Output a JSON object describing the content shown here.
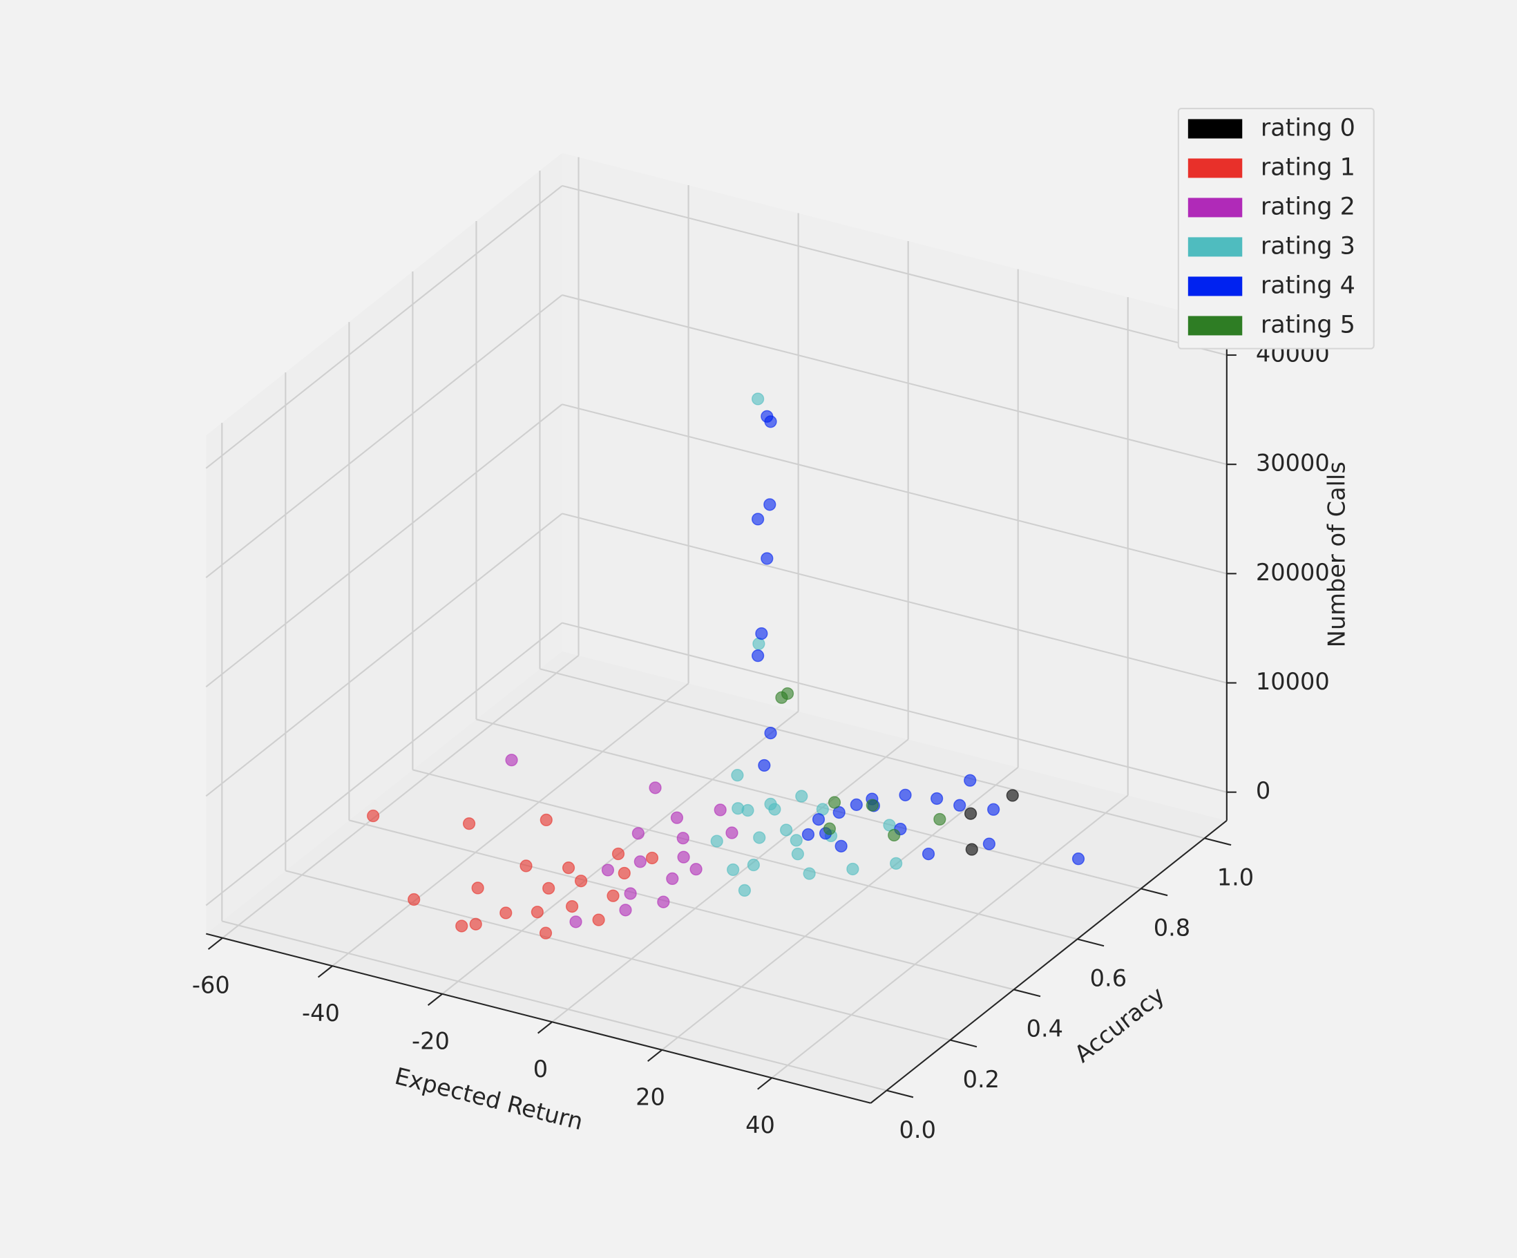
{
  "chart_data": {
    "type": "scatter3d",
    "xlabel": "Expected Return",
    "ylabel": "Accuracy",
    "zlabel": "Number of Calls",
    "xlim": [
      -63,
      58
    ],
    "ylim": [
      -0.05,
      1.07
    ],
    "zlim": [
      -2600,
      43000
    ],
    "xticks": [
      -60,
      -40,
      -20,
      0,
      20,
      40
    ],
    "yticks": [
      {
        "value": 0,
        "label": "0.0"
      },
      0.2,
      0.4,
      0.6,
      0.8,
      {
        "value": 1,
        "label": "1.0"
      }
    ],
    "zticks": [
      0,
      10000,
      20000,
      30000,
      40000
    ],
    "grid": true,
    "legend": "upper right",
    "series": [
      {
        "name": "rating 0",
        "color": "#000000",
        "x": [
          27,
          30,
          33
        ],
        "y": [
          0.8,
          0.88,
          0.7
        ],
        "z": [
          300,
          500,
          100
        ]
      },
      {
        "name": "rating 1",
        "color": "#e8302a",
        "x": [
          -54,
          -40,
          -30,
          -22,
          -35,
          -28,
          -20,
          -18,
          -15,
          -12,
          -10,
          -8,
          -14,
          -25,
          -16,
          -6,
          -19,
          -11,
          -24,
          -9
        ],
        "y": [
          0.32,
          0.38,
          0.45,
          0.09,
          0.12,
          0.2,
          0.15,
          0.25,
          0.3,
          0.22,
          0.35,
          0.28,
          0.4,
          0.3,
          0.18,
          0.2,
          0.33,
          0.12,
          0.08,
          0.42
        ],
        "z": [
          800,
          500,
          500,
          300,
          200,
          300,
          200,
          400,
          300,
          200,
          500,
          300,
          600,
          400,
          100,
          200,
          300,
          200,
          100,
          400
        ]
      },
      {
        "name": "rating 2",
        "color": "#b02ab8",
        "x": [
          -45,
          -20,
          -8,
          -5,
          -10,
          -3,
          -12,
          -6,
          -2,
          -15,
          -4,
          -1,
          -9,
          0,
          -7,
          -13
        ],
        "y": [
          0.6,
          0.62,
          0.5,
          0.45,
          0.4,
          0.38,
          0.55,
          0.3,
          0.55,
          0.48,
          0.25,
          0.42,
          0.18,
          0.3,
          0.6,
          0.35
        ],
        "z": [
          600,
          800,
          500,
          300,
          400,
          200,
          700,
          300,
          600,
          500,
          200,
          400,
          100,
          300,
          900,
          400
        ]
      },
      {
        "name": "rating 3",
        "color": "#4fbcbf",
        "x": [
          -2,
          1,
          0,
          -1,
          2,
          3,
          5,
          8,
          0,
          -3,
          6,
          10,
          4,
          12,
          15,
          20,
          7,
          2,
          9,
          18,
          25,
          1
        ],
        "y": [
          0.6,
          0.58,
          0.6,
          0.55,
          0.5,
          0.55,
          0.6,
          0.58,
          0.65,
          0.52,
          0.48,
          0.55,
          0.45,
          0.62,
          0.5,
          0.55,
          0.68,
          0.7,
          0.4,
          0.7,
          0.6,
          0.62
        ],
        "z": [
          1500,
          40000,
          17000,
          6000,
          4500,
          800,
          600,
          500,
          700,
          400,
          300,
          200,
          300,
          500,
          200,
          100,
          900,
          1000,
          200,
          400,
          100,
          2000
        ]
      },
      {
        "name": "rating 4",
        "color": "#0022f0",
        "x": [
          1.5,
          1,
          2,
          1,
          1.5,
          0.5,
          1,
          1,
          1,
          8,
          10,
          12,
          14,
          11,
          18,
          22,
          25,
          30,
          20,
          35,
          49.5,
          15,
          28,
          16,
          24,
          9
        ],
        "y": [
          0.6,
          0.62,
          0.6,
          0.58,
          0.6,
          0.6,
          0.58,
          0.62,
          0.6,
          0.65,
          0.68,
          0.7,
          0.72,
          0.62,
          0.75,
          0.78,
          0.8,
          0.82,
          0.7,
          0.72,
          0.75,
          0.6,
          0.65,
          0.68,
          0.85,
          0.6
        ],
        "z": [
          38000,
          37000,
          30000,
          29000,
          25000,
          18000,
          16500,
          8500,
          6000,
          800,
          1000,
          1500,
          1200,
          600,
          2000,
          1500,
          800,
          600,
          300,
          400,
          200,
          400,
          200,
          3000,
          1800,
          700
        ]
      },
      {
        "name": "rating 5",
        "color": "#2e7d24",
        "x": [
          3,
          3.5,
          8,
          12,
          20,
          26,
          10
        ],
        "y": [
          0.62,
          0.63,
          0.7,
          0.75,
          0.68,
          0.72,
          0.65
        ],
        "z": [
          12000,
          12200,
          1200,
          300,
          200,
          1500,
          200
        ]
      }
    ]
  }
}
